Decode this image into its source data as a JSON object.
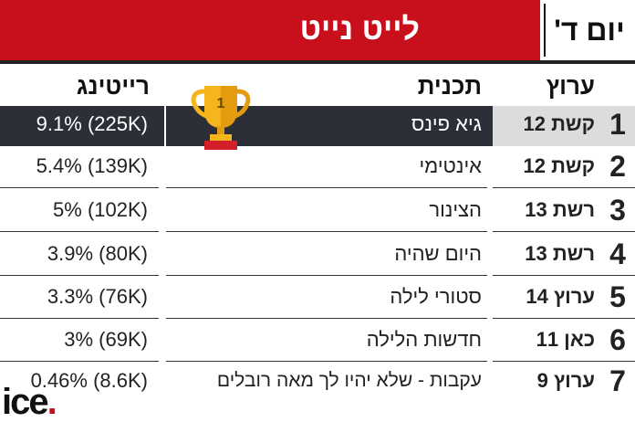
{
  "header": {
    "title": "לייט נייט",
    "day": "יום ד'"
  },
  "columns": {
    "channel": "ערוץ",
    "show": "תכנית",
    "rating": "רייטינג"
  },
  "rows": [
    {
      "rank": "1",
      "channel": "קשת 12",
      "show": "גיא פינס",
      "rating": "(225K) 9.1%"
    },
    {
      "rank": "2",
      "channel": "קשת 12",
      "show": "אינטימי",
      "rating": "(139K) 5.4%"
    },
    {
      "rank": "3",
      "channel": "רשת 13",
      "show": "הצינור",
      "rating": "(102K) 5%"
    },
    {
      "rank": "4",
      "channel": "רשת 13",
      "show": "היום שהיה",
      "rating": "(80K) 3.9%"
    },
    {
      "rank": "5",
      "channel": "ערוץ 14",
      "show": "סטורי לילה",
      "rating": "(76K) 3.3%"
    },
    {
      "rank": "6",
      "channel": "כאן 11",
      "show": "חדשות הלילה",
      "rating": "(69K) 3%"
    },
    {
      "rank": "7",
      "channel": "ערוץ 9",
      "show": "עקבות - שלא יהיו לך מאה רובלים",
      "rating": "(8.6K) 0.46%"
    }
  ],
  "trophy": {
    "label": "1",
    "icon": "trophy-icon"
  },
  "logo": {
    "text": "ice",
    "dot": "."
  },
  "colors": {
    "accent": "#c8101c",
    "highlight_row": "#2c2f38"
  }
}
